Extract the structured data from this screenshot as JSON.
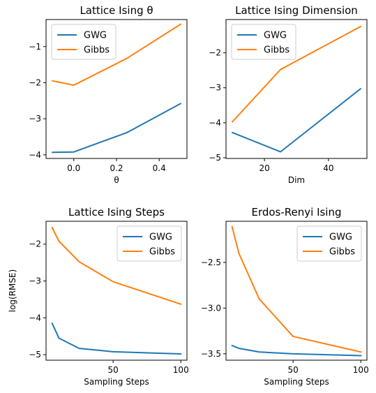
{
  "chart_data": [
    {
      "type": "line",
      "title": "Lattice Ising θ",
      "xlabel": "θ",
      "ylabel": "",
      "xlim": [
        -0.13,
        0.53
      ],
      "ylim": [
        -4.1,
        -0.25
      ],
      "xticks": [
        0.0,
        0.2,
        0.4
      ],
      "xtick_labels": [
        "0.0",
        "0.2",
        "0.4"
      ],
      "yticks": [
        -4,
        -3,
        -2,
        -1
      ],
      "ytick_labels": [
        "−4",
        "−3",
        "−2",
        "−1"
      ],
      "legend_position": "upper-left",
      "series": [
        {
          "name": "GWG",
          "color": "#1f77b4",
          "x": [
            -0.1,
            0.0,
            0.25,
            0.5
          ],
          "y": [
            -3.93,
            -3.92,
            -3.38,
            -2.58
          ]
        },
        {
          "name": "Gibbs",
          "color": "#ff7f0e",
          "x": [
            -0.1,
            0.0,
            0.25,
            0.5
          ],
          "y": [
            -1.95,
            -2.07,
            -1.32,
            -0.38
          ]
        }
      ]
    },
    {
      "type": "line",
      "title": "Lattice Ising Dimension",
      "xlabel": "Dim",
      "ylabel": "",
      "xlim": [
        8,
        52
      ],
      "ylim": [
        -5.02,
        -1.05
      ],
      "xticks": [
        20,
        40
      ],
      "xtick_labels": [
        "20",
        "40"
      ],
      "yticks": [
        -5,
        -4,
        -3,
        -2
      ],
      "ytick_labels": [
        "−5",
        "−4",
        "−3",
        "−2"
      ],
      "legend_position": "upper-left",
      "series": [
        {
          "name": "GWG",
          "color": "#1f77b4",
          "x": [
            10,
            25,
            50
          ],
          "y": [
            -4.28,
            -4.83,
            -3.03
          ]
        },
        {
          "name": "Gibbs",
          "color": "#ff7f0e",
          "x": [
            10,
            25,
            50
          ],
          "y": [
            -3.97,
            -2.48,
            -1.25
          ]
        }
      ]
    },
    {
      "type": "line",
      "title": "Lattice Ising Steps",
      "xlabel": "Sampling Steps",
      "ylabel": "log(RMSE)",
      "xlim": [
        0.5,
        104.5
      ],
      "ylim": [
        -5.15,
        -1.38
      ],
      "xticks": [
        50,
        100
      ],
      "xtick_labels": [
        "50",
        "100"
      ],
      "yticks": [
        -5,
        -4,
        -3,
        -2
      ],
      "ytick_labels": [
        "−5",
        "−4",
        "−3",
        "−2"
      ],
      "legend_position": "upper-right",
      "series": [
        {
          "name": "GWG",
          "color": "#1f77b4",
          "x": [
            5,
            10,
            25,
            50,
            100
          ],
          "y": [
            -4.15,
            -4.55,
            -4.83,
            -4.92,
            -4.98
          ]
        },
        {
          "name": "Gibbs",
          "color": "#ff7f0e",
          "x": [
            5,
            10,
            25,
            50,
            100
          ],
          "y": [
            -1.55,
            -1.92,
            -2.48,
            -3.02,
            -3.63
          ]
        }
      ]
    },
    {
      "type": "line",
      "title": "Erdos-Renyi Ising",
      "xlabel": "Sampling Steps",
      "ylabel": "",
      "xlim": [
        0.5,
        104.5
      ],
      "ylim": [
        -3.57,
        -2.05
      ],
      "xticks": [
        50,
        100
      ],
      "xtick_labels": [
        "50",
        "100"
      ],
      "yticks": [
        -3.5,
        -3.0,
        -2.5
      ],
      "ytick_labels": [
        "−3.5",
        "−3.0",
        "−2.5"
      ],
      "legend_position": "upper-right",
      "series": [
        {
          "name": "GWG",
          "color": "#1f77b4",
          "x": [
            5,
            10,
            25,
            50,
            100
          ],
          "y": [
            -3.41,
            -3.44,
            -3.48,
            -3.5,
            -3.52
          ]
        },
        {
          "name": "Gibbs",
          "color": "#ff7f0e",
          "x": [
            5,
            10,
            25,
            50,
            100
          ],
          "y": [
            -2.11,
            -2.4,
            -2.9,
            -3.31,
            -3.48
          ]
        }
      ]
    }
  ]
}
